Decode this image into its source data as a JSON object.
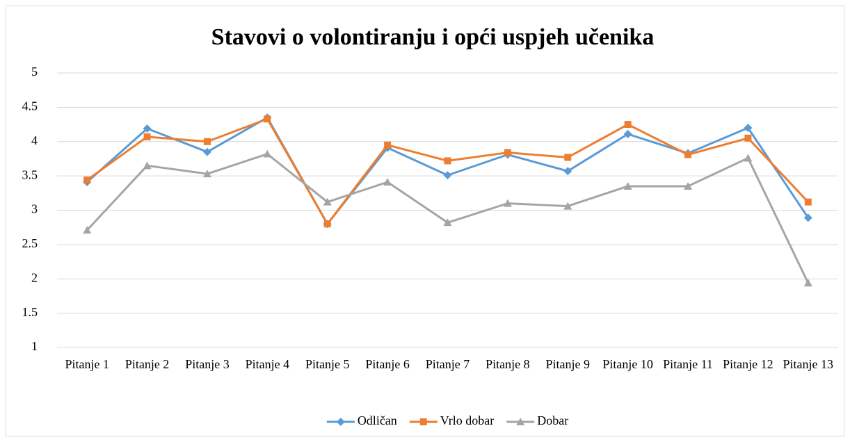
{
  "chart_data": {
    "type": "line",
    "title": "Stavovi o volontiranju i opći uspjeh učenika",
    "categories": [
      "Pitanje 1",
      "Pitanje 2",
      "Pitanje 3",
      "Pitanje 4",
      "Pitanje 5",
      "Pitanje 6",
      "Pitanje 7",
      "Pitanje 8",
      "Pitanje 9",
      "Pitanje 10",
      "Pitanje 11",
      "Pitanje 12",
      "Pitanje 13"
    ],
    "series": [
      {
        "name": "Odličan",
        "color": "#5b9bd5",
        "marker": "diamond",
        "values": [
          3.41,
          4.19,
          3.85,
          4.35,
          2.8,
          3.91,
          3.51,
          3.81,
          3.57,
          4.11,
          3.83,
          4.2,
          2.89
        ]
      },
      {
        "name": "Vrlo dobar",
        "color": "#ed7d31",
        "marker": "square",
        "values": [
          3.44,
          4.07,
          4.0,
          4.33,
          2.8,
          3.95,
          3.72,
          3.84,
          3.77,
          4.25,
          3.81,
          4.05,
          3.12
        ]
      },
      {
        "name": "Dobar",
        "color": "#a5a5a5",
        "marker": "triangle",
        "values": [
          2.71,
          3.65,
          3.53,
          3.82,
          3.12,
          3.41,
          2.82,
          3.1,
          3.06,
          3.35,
          3.35,
          3.76,
          1.94
        ]
      }
    ],
    "ylim": [
      1,
      5
    ],
    "yticks": [
      1,
      1.5,
      2,
      2.5,
      3,
      3.5,
      4,
      4.5,
      5
    ],
    "grid": true,
    "legend": "bottom"
  }
}
